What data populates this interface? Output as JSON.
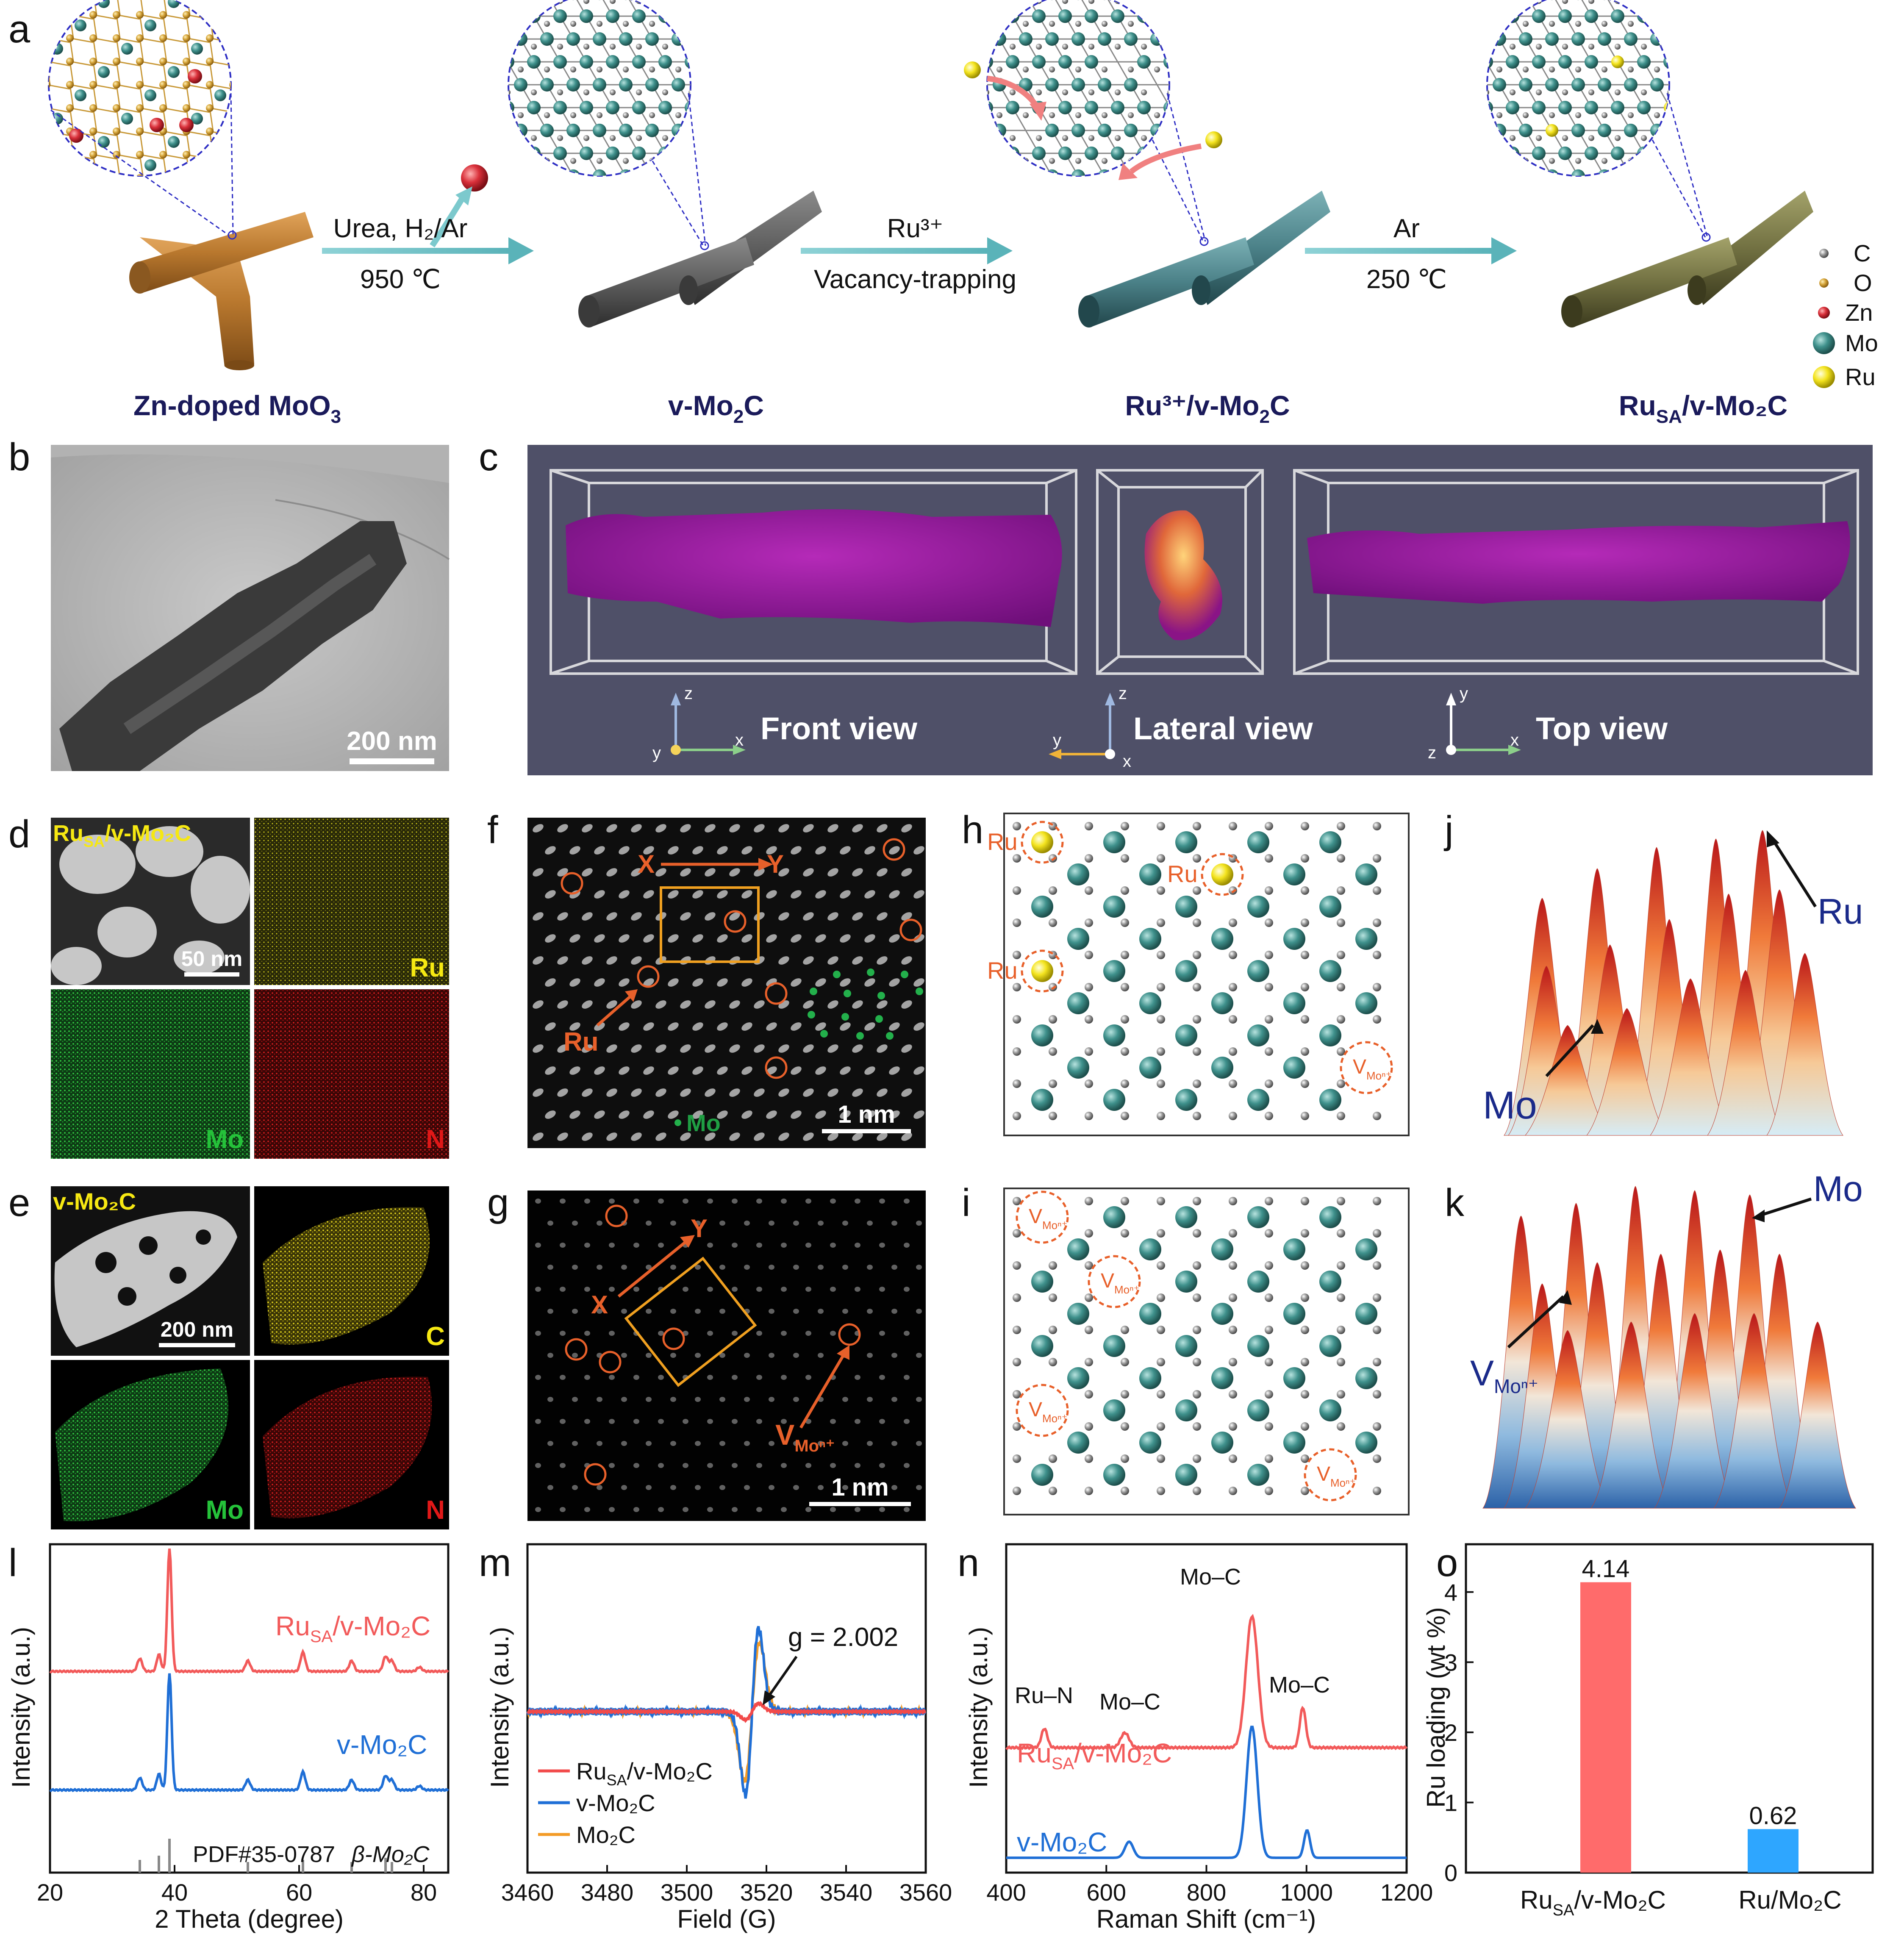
{
  "panel_letters": {
    "a": "a",
    "b": "b",
    "c": "c",
    "d": "d",
    "e": "e",
    "f": "f",
    "g": "g",
    "h": "h",
    "i": "i",
    "j": "j",
    "k": "k",
    "l": "l",
    "m": "m",
    "n": "n",
    "o": "o"
  },
  "panel_a": {
    "steps": [
      {
        "top": "Urea, H₂/Ar",
        "bottom": "950 ℃"
      },
      {
        "top": "Ru³⁺",
        "bottom": "Vacancy-trapping"
      },
      {
        "top": "Ar",
        "bottom": "250 ℃"
      }
    ],
    "names": [
      {
        "main": "Zn-doped MoO",
        "sub": "3",
        "tail": ""
      },
      {
        "main": "v-Mo",
        "sub": "2",
        "tail": "C"
      },
      {
        "main": "Ru³⁺/v-Mo",
        "sub": "2",
        "tail": "C"
      },
      {
        "main": "Ru",
        "sub": "SA",
        "tail": "/v-Mo₂C"
      }
    ],
    "legend": [
      {
        "label": "C",
        "color": "#8a8a8a"
      },
      {
        "label": "O",
        "color": "#d4a43a"
      },
      {
        "label": "Zn",
        "color": "#d8323c"
      },
      {
        "label": "Mo",
        "color": "#3e8e8a"
      },
      {
        "label": "Ru",
        "color": "#f2e21e"
      }
    ]
  },
  "panel_b": {
    "scale": "200 nm"
  },
  "panel_c": {
    "views": [
      "Front view",
      "Lateral view",
      "Top view"
    ],
    "axes": [
      {
        "up": "z",
        "left": "y",
        "right": "x"
      },
      {
        "up": "z",
        "left": "y",
        "right": "x"
      },
      {
        "up": "y",
        "left": "z",
        "right": "x"
      }
    ]
  },
  "panel_d": {
    "title_main": "Ru",
    "title_sub": "SA",
    "title_tail": "/v-Mo₂C",
    "scale": "50 nm",
    "maps": [
      "Ru",
      "Mo",
      "N"
    ]
  },
  "panel_e": {
    "title": "v-Mo₂C",
    "scale": "200 nm",
    "maps": [
      "C",
      "Mo",
      "N"
    ]
  },
  "panel_f": {
    "x": "X",
    "y": "Y",
    "ru": "Ru",
    "mo": "Mo",
    "scale": "1 nm"
  },
  "panel_g": {
    "x": "X",
    "y": "Y",
    "v": "V",
    "vsub": "Moⁿ⁺",
    "scale": "1 nm"
  },
  "panel_h": {
    "ru": "Ru",
    "v": "V",
    "vsub": "Moⁿ⁺"
  },
  "panel_i": {
    "v": "V",
    "vsub": "Moⁿ⁺"
  },
  "panel_j": {
    "ru": "Ru",
    "mo": "Mo"
  },
  "panel_k": {
    "mo": "Mo",
    "v": "V",
    "vsub": "Moⁿ⁺"
  },
  "panel_l": {
    "xlabel": "2 Theta (degree)",
    "ylabel": "Intensity (a.u.)",
    "ticks": [
      "20",
      "40",
      "60",
      "80"
    ],
    "series": [
      {
        "name": "Ru",
        "sub": "SA",
        "tail": "/v-Mo₂C",
        "color": "#f25a5a"
      },
      {
        "name": "v-Mo₂C",
        "sub": "",
        "tail": "",
        "color": "#1f6fd6"
      }
    ],
    "ref": "PDF#35-0787",
    "ref2": "β-Mo₂C"
  },
  "panel_m": {
    "xlabel": "Field (G)",
    "ylabel": "Intensity (a.u.)",
    "ticks": [
      "3460",
      "3480",
      "3500",
      "3520",
      "3540",
      "3560"
    ],
    "annotation": "g = 2.002",
    "series": [
      {
        "name": "Ru",
        "sub": "SA",
        "tail": "/v-Mo₂C",
        "color": "#f24a4a"
      },
      {
        "name": "v-Mo₂C",
        "sub": "",
        "tail": "",
        "color": "#1f6fd6"
      },
      {
        "name": "Mo₂C",
        "sub": "",
        "tail": "",
        "color": "#f39b26"
      }
    ]
  },
  "panel_n": {
    "xlabel": "Raman Shift (cm⁻¹)",
    "ylabel": "Intensity (a.u.)",
    "ticks": [
      "400",
      "600",
      "800",
      "1000",
      "1200"
    ],
    "peaks": [
      "Ru–N",
      "Mo–C",
      "Mo–C",
      "Mo–C"
    ],
    "series": [
      {
        "name": "Ru",
        "sub": "SA",
        "tail": "/v-Mo₂C",
        "color": "#f25a5a"
      },
      {
        "name": "v-Mo₂C",
        "sub": "",
        "tail": "",
        "color": "#1f6fd6"
      }
    ]
  },
  "chart_data": {
    "type": "bar",
    "categories": [
      "RuSA/v-Mo₂C",
      "Ru/Mo₂C"
    ],
    "cat_main": [
      "Ru",
      "Ru/Mo₂C"
    ],
    "cat_sub": [
      "SA",
      ""
    ],
    "cat_tail": [
      "/v-Mo₂C",
      ""
    ],
    "values": [
      4.14,
      0.62
    ],
    "value_labels": [
      "4.14",
      "0.62"
    ],
    "colors": [
      "#ff6b6b",
      "#2ea6ff"
    ],
    "ylabel": "Ru loading (wt %)",
    "ylim": [
      0,
      4.5
    ],
    "yticks": [
      "0",
      "1",
      "2",
      "3",
      "4"
    ]
  }
}
